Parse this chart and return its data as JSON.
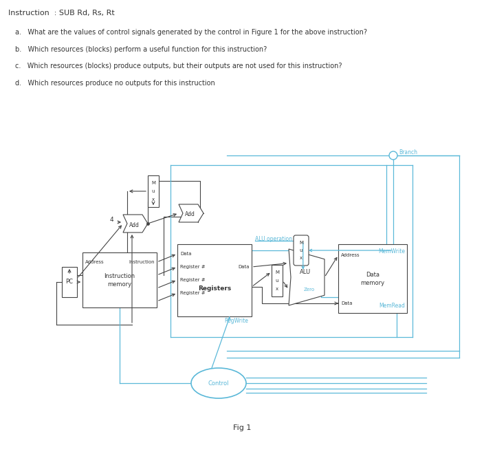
{
  "title": "Instruction  : SUB Rd, Rs, Rt",
  "q1": "a.   What are the values of control signals generated by the control in Figure 1 for the above instruction?",
  "q2": "b.   Which resources (blocks) perform a useful function for this instruction?",
  "q3": "c.   Which resources (blocks) produce outputs, but their outputs are not used for this instruction?",
  "q4": "d.   Which resources produce no outputs for this instruction",
  "fig_label": "Fig 1",
  "cc": "#5ab8d8",
  "bc": "#444444",
  "tc": "#333333",
  "bg": "#ffffff"
}
